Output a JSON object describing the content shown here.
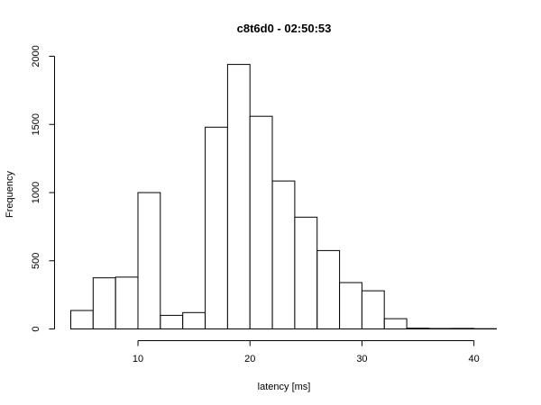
{
  "chart_data": {
    "type": "bar",
    "title": "c8t6d0 - 02:50:53",
    "xlabel": "latency [ms]",
    "ylabel": "Frequency",
    "bin_edges": [
      4,
      6,
      8,
      10,
      12,
      14,
      16,
      18,
      20,
      22,
      24,
      26,
      28,
      30,
      32,
      34,
      36,
      38,
      40,
      42
    ],
    "values": [
      135,
      375,
      380,
      1000,
      100,
      120,
      1480,
      1940,
      1560,
      1085,
      820,
      575,
      340,
      280,
      75,
      5,
      3,
      4,
      2
    ],
    "xlim": [
      4,
      42
    ],
    "ylim": [
      0,
      2000
    ],
    "x_ticks": [
      10,
      20,
      30,
      40
    ],
    "y_ticks": [
      0,
      500,
      1000,
      1500,
      2000
    ],
    "x_tick_labels": [
      "10",
      "20",
      "30",
      "40"
    ],
    "y_tick_labels": [
      "0",
      "500",
      "1000",
      "1500",
      "2000"
    ],
    "grid": false,
    "legend": "none",
    "colors": {
      "bar_fill": "#ffffff",
      "bar_stroke": "#000000"
    }
  }
}
